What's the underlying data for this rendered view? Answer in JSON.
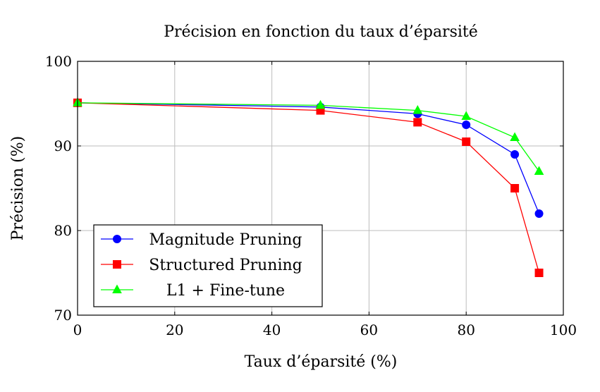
{
  "chart_data": {
    "type": "line",
    "title": "Précision en fonction du taux d’éparsité",
    "xlabel": "Taux d’éparsité (%)",
    "ylabel": "Précision (%)",
    "xlim": [
      0,
      100
    ],
    "ylim": [
      70,
      100
    ],
    "xticks": [
      0,
      20,
      40,
      60,
      80,
      100
    ],
    "yticks": [
      70,
      80,
      90,
      100
    ],
    "xtick_labels": [
      "0",
      "20",
      "40",
      "60",
      "80",
      "100"
    ],
    "ytick_labels": [
      "70",
      "80",
      "90",
      "100"
    ],
    "grid": true,
    "legend_position": "bottom-left",
    "series": [
      {
        "name": "Magnitude Pruning",
        "color": "#0000ff",
        "marker": "circle",
        "x": [
          0,
          50,
          70,
          80,
          90,
          95
        ],
        "y": [
          95.1,
          94.6,
          93.8,
          92.5,
          89.0,
          82.0
        ]
      },
      {
        "name": "Structured Pruning",
        "color": "#ff0000",
        "marker": "square",
        "x": [
          0,
          50,
          70,
          80,
          90,
          95
        ],
        "y": [
          95.1,
          94.2,
          92.8,
          90.5,
          85.0,
          75.0
        ]
      },
      {
        "name": "L1 + Fine-tune",
        "color": "#00ff00",
        "marker": "triangle",
        "x": [
          0,
          50,
          70,
          80,
          90,
          95
        ],
        "y": [
          95.1,
          94.8,
          94.2,
          93.5,
          91.0,
          87.0
        ]
      }
    ]
  }
}
